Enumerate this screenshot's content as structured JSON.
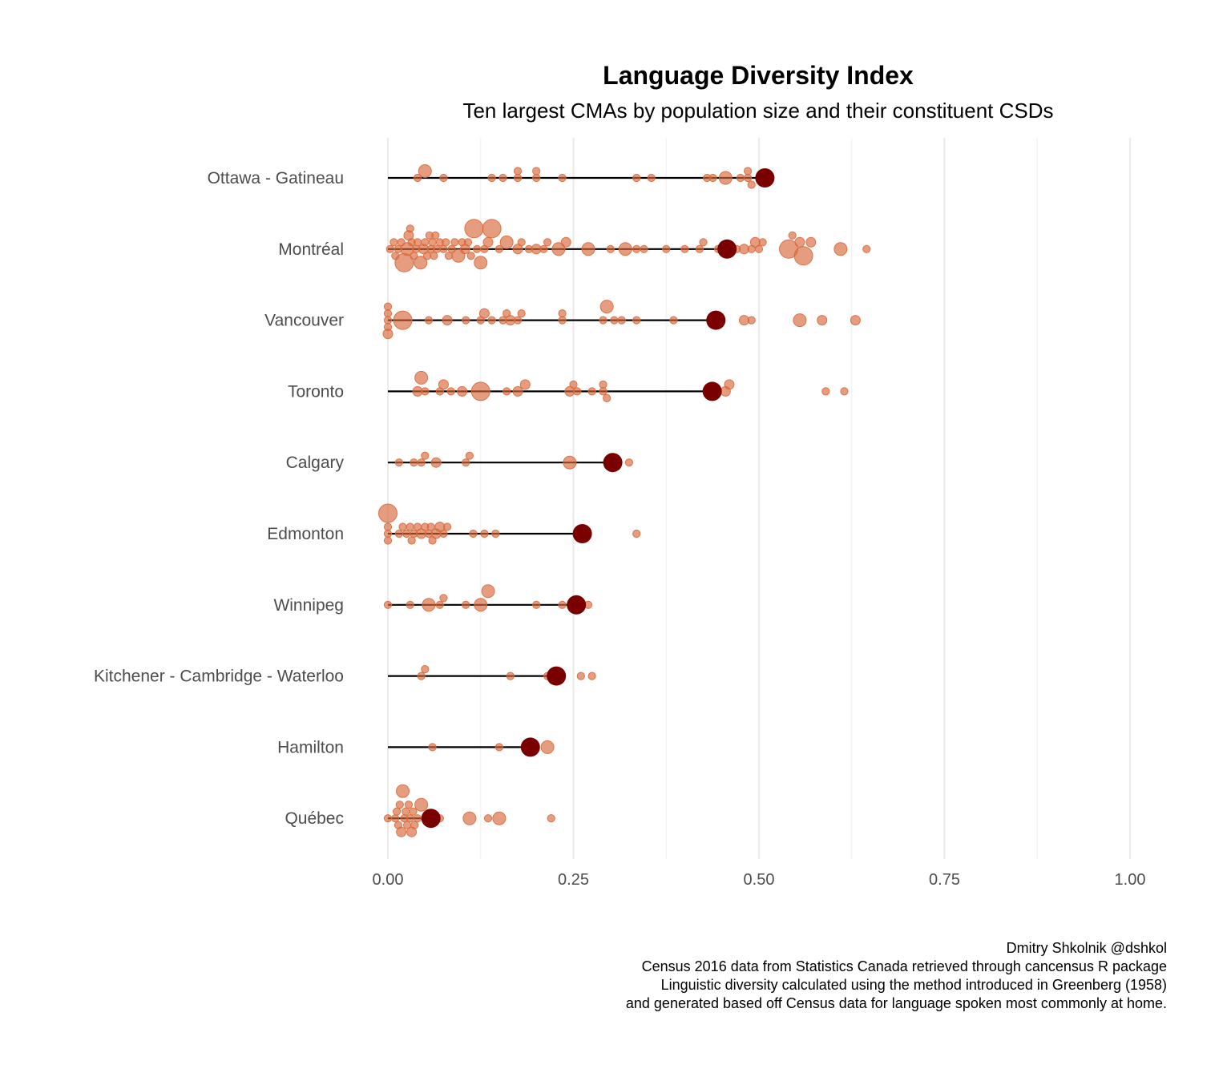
{
  "chart_data": {
    "type": "scatter",
    "title": "Language Diversity Index",
    "subtitle": "Ten largest CMAs by population size and their constituent CSDs",
    "xlabel": "",
    "ylabel": "",
    "xlim": [
      0,
      1
    ],
    "x_ticks": [
      "0.00",
      "0.25",
      "0.50",
      "0.75",
      "1.00"
    ],
    "x_tick_values": [
      0,
      0.25,
      0.5,
      0.75,
      1.0
    ],
    "grid": true,
    "legend": "none",
    "colors": {
      "csd_point": "#d9693a",
      "cma_point": "#7a0000",
      "segment": "#000000"
    },
    "categories": [
      "Ottawa - Gatineau",
      "Montréal",
      "Vancouver",
      "Toronto",
      "Calgary",
      "Edmonton",
      "Winnipeg",
      "Kitchener - Cambridge - Waterloo",
      "Hamilton",
      "Québec"
    ],
    "cma_values": [
      0.508,
      0.457,
      0.442,
      0.437,
      0.303,
      0.262,
      0.254,
      0.227,
      0.192,
      0.058
    ],
    "csd_values": [
      [
        0.04,
        0.05,
        0.075,
        0.14,
        0.155,
        0.175,
        0.175,
        0.2,
        0.2,
        0.235,
        0.335,
        0.355,
        0.43,
        0.438,
        0.455,
        0.475,
        0.485,
        0.485,
        0.49
      ],
      [
        0.003,
        0.008,
        0.01,
        0.014,
        0.018,
        0.022,
        0.026,
        0.028,
        0.03,
        0.032,
        0.035,
        0.038,
        0.04,
        0.044,
        0.048,
        0.05,
        0.053,
        0.056,
        0.058,
        0.06,
        0.062,
        0.064,
        0.066,
        0.07,
        0.075,
        0.078,
        0.082,
        0.086,
        0.09,
        0.095,
        0.1,
        0.104,
        0.108,
        0.112,
        0.116,
        0.12,
        0.125,
        0.13,
        0.135,
        0.14,
        0.15,
        0.16,
        0.175,
        0.18,
        0.19,
        0.2,
        0.21,
        0.215,
        0.23,
        0.24,
        0.27,
        0.3,
        0.32,
        0.335,
        0.345,
        0.375,
        0.4,
        0.42,
        0.425,
        0.445,
        0.46,
        0.47,
        0.48,
        0.49,
        0.495,
        0.5,
        0.505,
        0.54,
        0.545,
        0.555,
        0.56,
        0.57,
        0.61,
        0.645
      ],
      [
        0.0,
        0.0,
        0.0,
        0.0,
        0.0,
        0.02,
        0.055,
        0.08,
        0.105,
        0.125,
        0.13,
        0.14,
        0.155,
        0.16,
        0.165,
        0.175,
        0.18,
        0.235,
        0.235,
        0.29,
        0.295,
        0.305,
        0.315,
        0.335,
        0.385,
        0.445,
        0.48,
        0.49,
        0.555,
        0.585,
        0.63
      ],
      [
        0.04,
        0.045,
        0.05,
        0.07,
        0.075,
        0.085,
        0.1,
        0.125,
        0.16,
        0.175,
        0.185,
        0.245,
        0.25,
        0.255,
        0.275,
        0.29,
        0.29,
        0.295,
        0.455,
        0.46,
        0.59,
        0.615
      ],
      [
        0.015,
        0.035,
        0.045,
        0.05,
        0.065,
        0.105,
        0.11,
        0.245,
        0.325
      ],
      [
        0.0,
        0.0,
        0.0,
        0.0,
        0.015,
        0.02,
        0.025,
        0.03,
        0.032,
        0.035,
        0.04,
        0.045,
        0.05,
        0.055,
        0.058,
        0.06,
        0.065,
        0.07,
        0.075,
        0.08,
        0.115,
        0.13,
        0.145,
        0.335
      ],
      [
        0.0,
        0.03,
        0.055,
        0.07,
        0.075,
        0.105,
        0.125,
        0.135,
        0.2,
        0.235,
        0.27
      ],
      [
        0.045,
        0.05,
        0.165,
        0.215,
        0.26,
        0.275
      ],
      [
        0.06,
        0.15,
        0.215
      ],
      [
        0.0,
        0.01,
        0.012,
        0.014,
        0.016,
        0.018,
        0.02,
        0.022,
        0.024,
        0.026,
        0.028,
        0.03,
        0.032,
        0.034,
        0.036,
        0.04,
        0.045,
        0.05,
        0.07,
        0.11,
        0.135,
        0.15,
        0.22
      ]
    ]
  },
  "caption": {
    "lines": [
      "Dmitry Shkolnik @dshkol",
      "Census 2016 data from Statistics Canada retrieved through cancensus R package",
      "Linguistic diversity calculated using the method introduced in Greenberg (1958)",
      "and generated based off Census data for language spoken most commonly at home."
    ]
  }
}
